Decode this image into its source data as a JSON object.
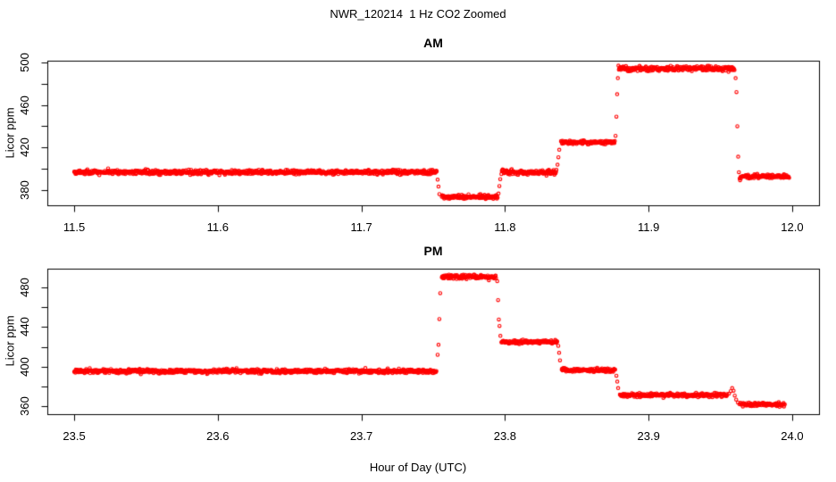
{
  "figure": {
    "title": "NWR_120214  1 Hz CO2 Zoomed",
    "xlabel": "Hour of Day (UTC)",
    "background": "#FFFFFF",
    "point_color": "#FF0000",
    "axis_color": "#000000"
  },
  "chart_data": [
    {
      "type": "scatter",
      "panel": "AM",
      "title": "AM",
      "ylabel": "Licor ppm",
      "sample_rate_hz": 1,
      "xlim": [
        11.4813,
        12.0187
      ],
      "ylim": [
        366.0,
        501.4
      ],
      "grid": false,
      "xticks": [
        {
          "v": 11.5,
          "label": "11.5"
        },
        {
          "v": 11.6,
          "label": "11.6"
        },
        {
          "v": 11.7,
          "label": "11.7"
        },
        {
          "v": 11.8,
          "label": "11.8"
        },
        {
          "v": 11.9,
          "label": "11.9"
        },
        {
          "v": 12.0,
          "label": "12.0"
        }
      ],
      "yticks": [
        {
          "v": 380,
          "label": "380"
        },
        {
          "v": 400,
          "label": ""
        },
        {
          "v": 420,
          "label": "420"
        },
        {
          "v": 440,
          "label": ""
        },
        {
          "v": 460,
          "label": "460"
        },
        {
          "v": 480,
          "label": ""
        },
        {
          "v": 500,
          "label": "500"
        }
      ],
      "segments": [
        {
          "x_start": 11.5,
          "x_end": 11.7525,
          "level": 397.0,
          "noise_sd": 1.0
        },
        {
          "x_start": 11.756,
          "x_end": 11.795,
          "level": 374.0,
          "noise_sd": 0.9
        },
        {
          "x_start": 11.7975,
          "x_end": 11.836,
          "level": 397.0,
          "noise_sd": 1.0
        },
        {
          "x_start": 11.839,
          "x_end": 11.8765,
          "level": 425.0,
          "noise_sd": 0.9
        },
        {
          "x_start": 11.879,
          "x_end": 11.96,
          "level": 494.0,
          "noise_sd": 1.1
        },
        {
          "x_start": 11.964,
          "x_end": 11.998,
          "level": 393.0,
          "noise_sd": 0.9
        }
      ],
      "transition_points": [
        [
          11.7531,
          390.0
        ],
        [
          11.7537,
          383.5
        ],
        [
          11.7543,
          376.5
        ],
        [
          11.7955,
          377.0
        ],
        [
          11.7961,
          384.0
        ],
        [
          11.7967,
          390.5
        ],
        [
          11.8366,
          404.0
        ],
        [
          11.8372,
          411.0
        ],
        [
          11.8378,
          418.0
        ],
        [
          11.877,
          431.0
        ],
        [
          11.8776,
          449.0
        ],
        [
          11.8781,
          470.0
        ],
        [
          11.8786,
          485.0
        ],
        [
          11.9606,
          485.0
        ],
        [
          11.9612,
          472.0
        ],
        [
          11.9618,
          440.0
        ],
        [
          11.9624,
          411.5
        ],
        [
          11.9629,
          397.0
        ],
        [
          11.9634,
          391.0
        ],
        [
          11.9637,
          389.5
        ]
      ]
    },
    {
      "type": "scatter",
      "panel": "PM",
      "title": "PM",
      "ylabel": "Licor ppm",
      "sample_rate_hz": 1,
      "xlim": [
        23.4813,
        24.0187
      ],
      "ylim": [
        352.8,
        498.6
      ],
      "grid": false,
      "xticks": [
        {
          "v": 23.5,
          "label": "23.5"
        },
        {
          "v": 23.6,
          "label": "23.6"
        },
        {
          "v": 23.7,
          "label": "23.7"
        },
        {
          "v": 23.8,
          "label": "23.8"
        },
        {
          "v": 23.9,
          "label": "23.9"
        },
        {
          "v": 24.0,
          "label": "24.0"
        }
      ],
      "yticks": [
        {
          "v": 360,
          "label": "360"
        },
        {
          "v": 380,
          "label": ""
        },
        {
          "v": 400,
          "label": "400"
        },
        {
          "v": 420,
          "label": ""
        },
        {
          "v": 440,
          "label": "440"
        },
        {
          "v": 460,
          "label": ""
        },
        {
          "v": 480,
          "label": "480"
        }
      ],
      "segments": [
        {
          "x_start": 23.5,
          "x_end": 23.7525,
          "level": 395.5,
          "noise_sd": 1.0
        },
        {
          "x_start": 23.756,
          "x_end": 23.794,
          "level": 490.5,
          "noise_sd": 1.2
        },
        {
          "x_start": 23.7975,
          "x_end": 23.8365,
          "level": 425.0,
          "noise_sd": 0.9
        },
        {
          "x_start": 23.8395,
          "x_end": 23.877,
          "level": 396.5,
          "noise_sd": 0.9
        },
        {
          "x_start": 23.88,
          "x_end": 23.955,
          "level": 371.5,
          "noise_sd": 1.0
        },
        {
          "x_start": 23.964,
          "x_end": 23.995,
          "level": 362.0,
          "noise_sd": 0.9
        }
      ],
      "transition_points": [
        [
          23.7531,
          412.0
        ],
        [
          23.7537,
          422.0
        ],
        [
          23.7543,
          448.0
        ],
        [
          23.7549,
          474.0
        ],
        [
          23.7946,
          486.0
        ],
        [
          23.7952,
          467.0
        ],
        [
          23.7957,
          447.5
        ],
        [
          23.7962,
          441.0
        ],
        [
          23.7968,
          431.0
        ],
        [
          23.8371,
          421.0
        ],
        [
          23.8377,
          414.0
        ],
        [
          23.8383,
          406.5
        ],
        [
          23.8776,
          391.0
        ],
        [
          23.8782,
          385.0
        ],
        [
          23.8788,
          378.5
        ],
        [
          23.956,
          373.0
        ],
        [
          23.9572,
          375.5
        ],
        [
          23.9582,
          378.5
        ],
        [
          23.9592,
          376.0
        ],
        [
          23.96,
          371.0
        ],
        [
          23.961,
          367.0
        ],
        [
          23.9622,
          364.0
        ],
        [
          23.9632,
          362.5
        ]
      ]
    }
  ]
}
